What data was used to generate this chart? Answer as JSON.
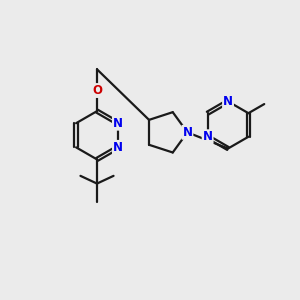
{
  "bg_color": "#ebebeb",
  "bond_color": "#1a1a1a",
  "N_color": "#0000ee",
  "O_color": "#cc0000",
  "line_width": 1.6,
  "font_size": 8.5,
  "fig_size": [
    3.0,
    3.0
  ],
  "dpi": 100,
  "xlim": [
    0,
    10
  ],
  "ylim": [
    0,
    10
  ]
}
